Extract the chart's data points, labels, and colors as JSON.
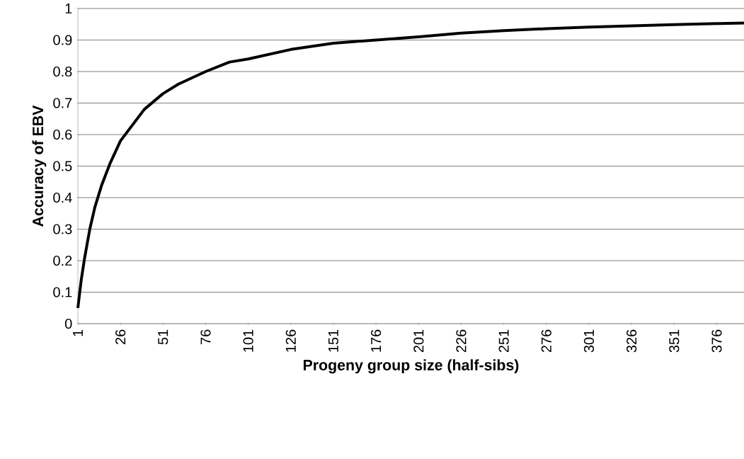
{
  "chart_data": {
    "type": "line",
    "xlabel": "Progeny group size (half-sibs)",
    "ylabel": "Accuracy of EBV",
    "x": [
      1,
      3,
      5,
      8,
      11,
      15,
      20,
      26,
      33,
      40,
      51,
      60,
      76,
      90,
      101,
      126,
      151,
      176,
      201,
      226,
      251,
      276,
      301,
      326,
      351,
      376,
      392
    ],
    "series": [
      {
        "color": "#000000",
        "values": [
          0.05,
          0.14,
          0.21,
          0.3,
          0.37,
          0.44,
          0.51,
          0.58,
          0.63,
          0.68,
          0.73,
          0.76,
          0.8,
          0.83,
          0.84,
          0.87,
          0.89,
          0.9,
          0.91,
          0.922,
          0.93,
          0.936,
          0.941,
          0.945,
          0.949,
          0.952,
          0.954
        ]
      }
    ],
    "xlim": [
      1,
      392
    ],
    "ylim": [
      0,
      1
    ],
    "xticks": [
      1,
      26,
      51,
      76,
      101,
      126,
      151,
      176,
      201,
      226,
      251,
      276,
      301,
      326,
      351,
      376
    ],
    "yticks": [
      0,
      0.1,
      0.2,
      0.3,
      0.4,
      0.5,
      0.6,
      0.7,
      0.8,
      0.9,
      1
    ],
    "grid": "y",
    "marker": "none",
    "line_style": "solid"
  }
}
